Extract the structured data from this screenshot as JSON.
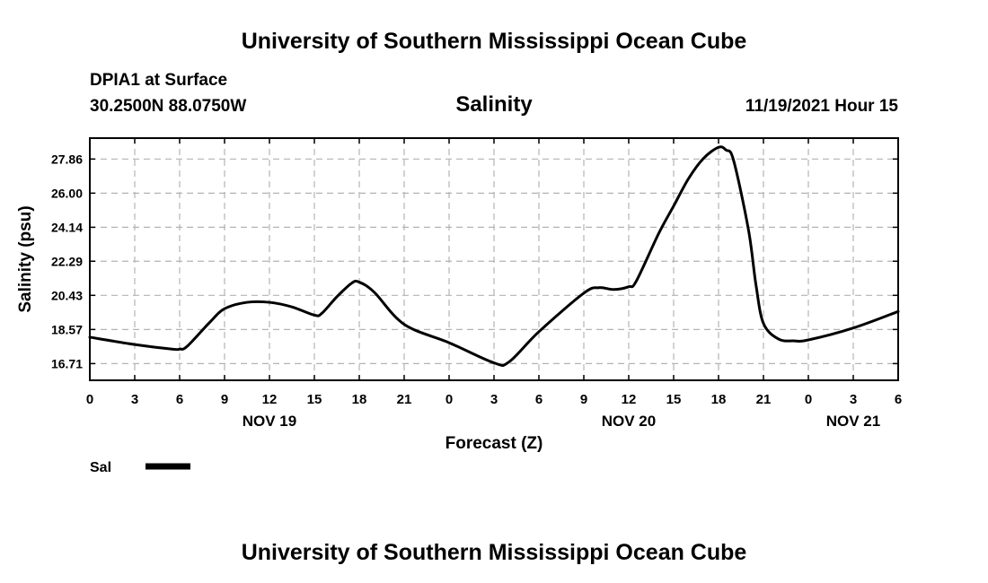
{
  "header": {
    "title": "University of Southern Mississippi Ocean Cube",
    "station": "DPIA1 at Surface",
    "coords": "30.2500N  88.0750W",
    "variable": "Salinity",
    "datetime": "11/19/2021 Hour 15"
  },
  "footer": {
    "title": "University of Southern Mississippi Ocean Cube"
  },
  "chart_data": {
    "type": "line",
    "title": "Salinity",
    "xlabel": "Forecast (Z)",
    "ylabel": "Salinity (psu)",
    "x_unit": "forecast hour",
    "xlim": [
      0,
      54
    ],
    "ylim": [
      15.8,
      29.0
    ],
    "grid": true,
    "x_ticks": [
      {
        "hour": 0,
        "label": "0"
      },
      {
        "hour": 3,
        "label": "3"
      },
      {
        "hour": 6,
        "label": "6"
      },
      {
        "hour": 9,
        "label": "9"
      },
      {
        "hour": 12,
        "label": "12"
      },
      {
        "hour": 15,
        "label": "15"
      },
      {
        "hour": 18,
        "label": "18"
      },
      {
        "hour": 21,
        "label": "21"
      },
      {
        "hour": 24,
        "label": "0"
      },
      {
        "hour": 27,
        "label": "3"
      },
      {
        "hour": 30,
        "label": "6"
      },
      {
        "hour": 33,
        "label": "9"
      },
      {
        "hour": 36,
        "label": "12"
      },
      {
        "hour": 39,
        "label": "15"
      },
      {
        "hour": 42,
        "label": "18"
      },
      {
        "hour": 45,
        "label": "21"
      },
      {
        "hour": 48,
        "label": "0"
      },
      {
        "hour": 51,
        "label": "3"
      },
      {
        "hour": 54,
        "label": "6"
      }
    ],
    "day_labels": [
      {
        "hour": 12,
        "label": "NOV 19"
      },
      {
        "hour": 36,
        "label": "NOV 20"
      },
      {
        "hour": 51,
        "label": "NOV 21"
      }
    ],
    "y_ticks": [
      {
        "value": 16.71,
        "label": "16.71"
      },
      {
        "value": 18.57,
        "label": "18.57"
      },
      {
        "value": 20.43,
        "label": "20.43"
      },
      {
        "value": 22.29,
        "label": "22.29"
      },
      {
        "value": 24.14,
        "label": "24.14"
      },
      {
        "value": 26.0,
        "label": "26.00"
      },
      {
        "value": 27.86,
        "label": "27.86"
      }
    ],
    "series": [
      {
        "name": "Sal",
        "color": "#000000",
        "x": [
          0,
          3,
          5.5,
          6,
          6.5,
          8,
          9,
          10.5,
          12,
          13.5,
          15,
          15.5,
          16.5,
          17.5,
          18,
          19,
          21,
          24,
          27,
          28,
          30,
          33,
          34,
          35,
          36,
          36.5,
          38,
          39,
          40,
          41,
          42,
          42.5,
          43,
          44,
          44.5,
          45,
          46,
          47,
          48,
          51,
          54
        ],
        "values": [
          18.15,
          17.75,
          17.5,
          17.5,
          17.65,
          18.95,
          19.7,
          20.05,
          20.05,
          19.8,
          19.35,
          19.45,
          20.35,
          21.1,
          21.15,
          20.6,
          18.85,
          17.85,
          16.75,
          16.8,
          18.45,
          20.55,
          20.85,
          20.75,
          20.9,
          21.2,
          23.8,
          25.3,
          26.8,
          27.9,
          28.5,
          28.35,
          27.8,
          24.0,
          21.0,
          18.9,
          18.05,
          17.95,
          18.0,
          18.65,
          19.55
        ]
      }
    ],
    "legend": [
      {
        "label": "Sal",
        "placement": "bottom-left"
      }
    ]
  }
}
